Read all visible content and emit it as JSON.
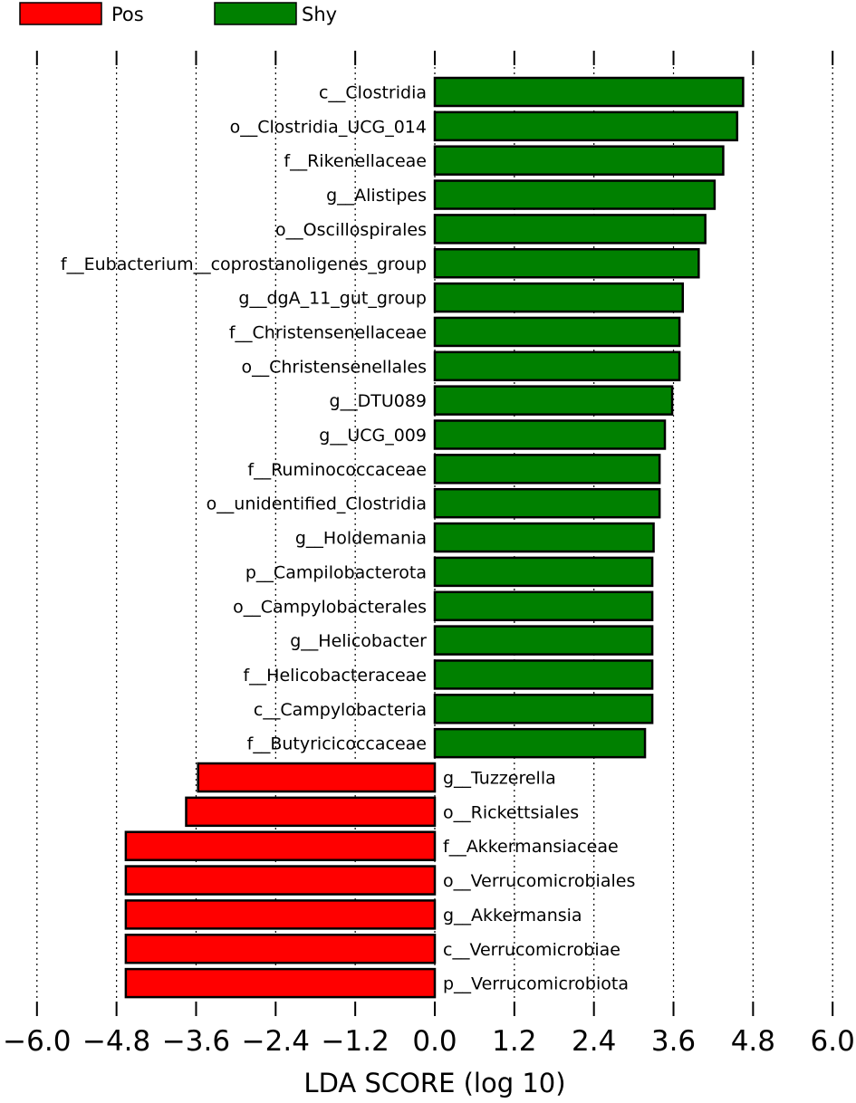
{
  "chart_data": {
    "type": "bar",
    "orientation": "horizontal",
    "xlabel": "LDA SCORE (log 10)",
    "xlim": [
      -6.0,
      6.0
    ],
    "xticks": [
      -6.0,
      -4.8,
      -3.6,
      -2.4,
      -1.2,
      0.0,
      1.2,
      2.4,
      3.6,
      4.8,
      6.0
    ],
    "xtick_labels": [
      "−6.0",
      "−4.8",
      "−3.6",
      "−2.4",
      "−1.2",
      "0.0",
      "1.2",
      "2.4",
      "3.6",
      "4.8",
      "6.0"
    ],
    "grid": "vertical dotted",
    "legend_placement": "top-left",
    "legend": [
      {
        "name": "Pos",
        "color": "#ff0000"
      },
      {
        "name": "Shy",
        "color": "#008000"
      }
    ],
    "bars": [
      {
        "label": "c__Clostridia",
        "value": 4.65,
        "group": "Shy"
      },
      {
        "label": "o__Clostridia_UCG_014",
        "value": 4.56,
        "group": "Shy"
      },
      {
        "label": "f__Rikenellaceae",
        "value": 4.35,
        "group": "Shy"
      },
      {
        "label": "g__Alistipes",
        "value": 4.22,
        "group": "Shy"
      },
      {
        "label": "o__Oscillospirales",
        "value": 4.08,
        "group": "Shy"
      },
      {
        "label": "f__Eubacterium__coprostanoligenes_group",
        "value": 3.98,
        "group": "Shy"
      },
      {
        "label": "g__dgA_11_gut_group",
        "value": 3.74,
        "group": "Shy"
      },
      {
        "label": "f__Christensenellaceae",
        "value": 3.69,
        "group": "Shy"
      },
      {
        "label": "o__Christensenellales",
        "value": 3.69,
        "group": "Shy"
      },
      {
        "label": "g__DTU089",
        "value": 3.58,
        "group": "Shy"
      },
      {
        "label": "g__UCG_009",
        "value": 3.47,
        "group": "Shy"
      },
      {
        "label": "f__Ruminococcaceae",
        "value": 3.39,
        "group": "Shy"
      },
      {
        "label": "o__unidentified_Clostridia",
        "value": 3.39,
        "group": "Shy"
      },
      {
        "label": "g__Holdemania",
        "value": 3.3,
        "group": "Shy"
      },
      {
        "label": "p__Campilobacterota",
        "value": 3.28,
        "group": "Shy"
      },
      {
        "label": "o__Campylobacterales",
        "value": 3.28,
        "group": "Shy"
      },
      {
        "label": "g__Helicobacter",
        "value": 3.28,
        "group": "Shy"
      },
      {
        "label": "f__Helicobacteraceae",
        "value": 3.28,
        "group": "Shy"
      },
      {
        "label": "c__Campylobacteria",
        "value": 3.28,
        "group": "Shy"
      },
      {
        "label": "f__Butyricicoccaceae",
        "value": 3.17,
        "group": "Shy"
      },
      {
        "label": "g__Tuzzerella",
        "value": -3.57,
        "group": "Pos"
      },
      {
        "label": "o__Rickettsiales",
        "value": -3.75,
        "group": "Pos"
      },
      {
        "label": "f__Akkermansiaceae",
        "value": -4.66,
        "group": "Pos"
      },
      {
        "label": "o__Verrucomicrobiales",
        "value": -4.66,
        "group": "Pos"
      },
      {
        "label": "g__Akkermansia",
        "value": -4.66,
        "group": "Pos"
      },
      {
        "label": "c__Verrucomicrobiae",
        "value": -4.66,
        "group": "Pos"
      },
      {
        "label": "p__Verrucomicrobiota",
        "value": -4.66,
        "group": "Pos"
      }
    ]
  }
}
